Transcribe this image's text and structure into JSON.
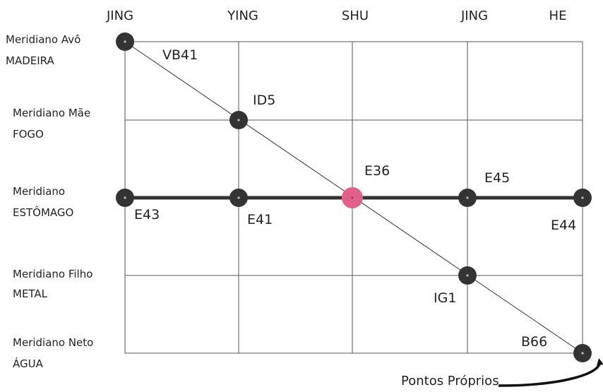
{
  "columns": [
    "JING",
    "YING",
    "SHU",
    "JING",
    "HE"
  ],
  "rows": [
    {
      "line1": "Meridiano Avô",
      "line2": "MADEIRA"
    },
    {
      "line1": "Meridiano Mãe",
      "line2": "FOGO"
    },
    {
      "line1": "Meridiano",
      "line2": "ESTÔMAGO"
    },
    {
      "line1": "Meridiano Filho",
      "line2": "METAL"
    },
    {
      "line1": "Meridiano Neto",
      "line2": "ÁGUA"
    }
  ],
  "points": [
    {
      "label": "VB41",
      "col": 0,
      "row": 0
    },
    {
      "label": "ID5",
      "col": 1,
      "row": 1
    },
    {
      "label": "E43",
      "col": 0,
      "row": 2
    },
    {
      "label": "E41",
      "col": 1,
      "row": 2
    },
    {
      "label": "E36",
      "col": 2,
      "row": 2,
      "highlight": true
    },
    {
      "label": "E45",
      "col": 3,
      "row": 2
    },
    {
      "label": "E44",
      "col": 4,
      "row": 2
    },
    {
      "label": "IG1",
      "col": 3,
      "row": 3
    },
    {
      "label": "B66",
      "col": 4,
      "row": 4
    }
  ],
  "note": "Pontos Próprios",
  "colors": {
    "node": "#333333",
    "highlight": "#e0608a",
    "grid": "#555555",
    "main_line": "#333333"
  }
}
